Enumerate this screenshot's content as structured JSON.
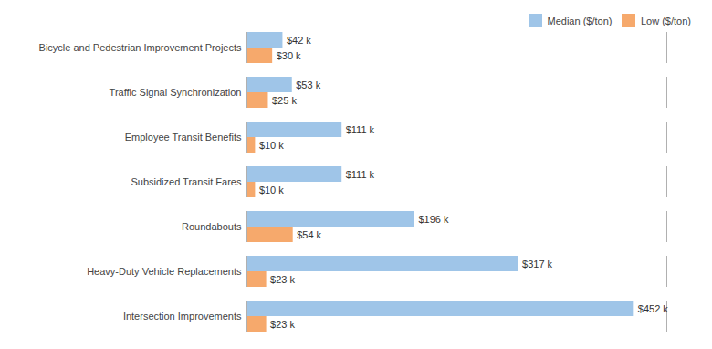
{
  "chart_data": {
    "type": "bar",
    "orientation": "horizontal",
    "categories": [
      "Bicycle and Pedestrian Improvement Projects",
      "Traffic Signal Synchronization",
      "Employee Transit Benefits",
      "Subsidized Transit Fares",
      "Roundabouts",
      "Heavy-Duty Vehicle Replacements",
      "Intersection Improvements"
    ],
    "series": [
      {
        "name": "Median ($/ton)",
        "color": "#9fc5e8",
        "values": [
          42,
          53,
          111,
          111,
          196,
          317,
          452
        ],
        "value_labels": [
          "$42 k",
          "$53 k",
          "$111 k",
          "$111 k",
          "$196 k",
          "$317 k",
          "$452 k"
        ]
      },
      {
        "name": "Low ($/ton)",
        "color": "#f6a96c",
        "values": [
          30,
          25,
          10,
          10,
          54,
          23,
          23
        ],
        "value_labels": [
          "$30 k",
          "$25 k",
          "$10 k",
          "$10 k",
          "$54 k",
          "$23 k",
          "$23 k"
        ]
      }
    ],
    "xlim": [
      0,
      490
    ],
    "data_labels": true,
    "tick_labels": "y",
    "grid": false,
    "legend": "upper right"
  }
}
